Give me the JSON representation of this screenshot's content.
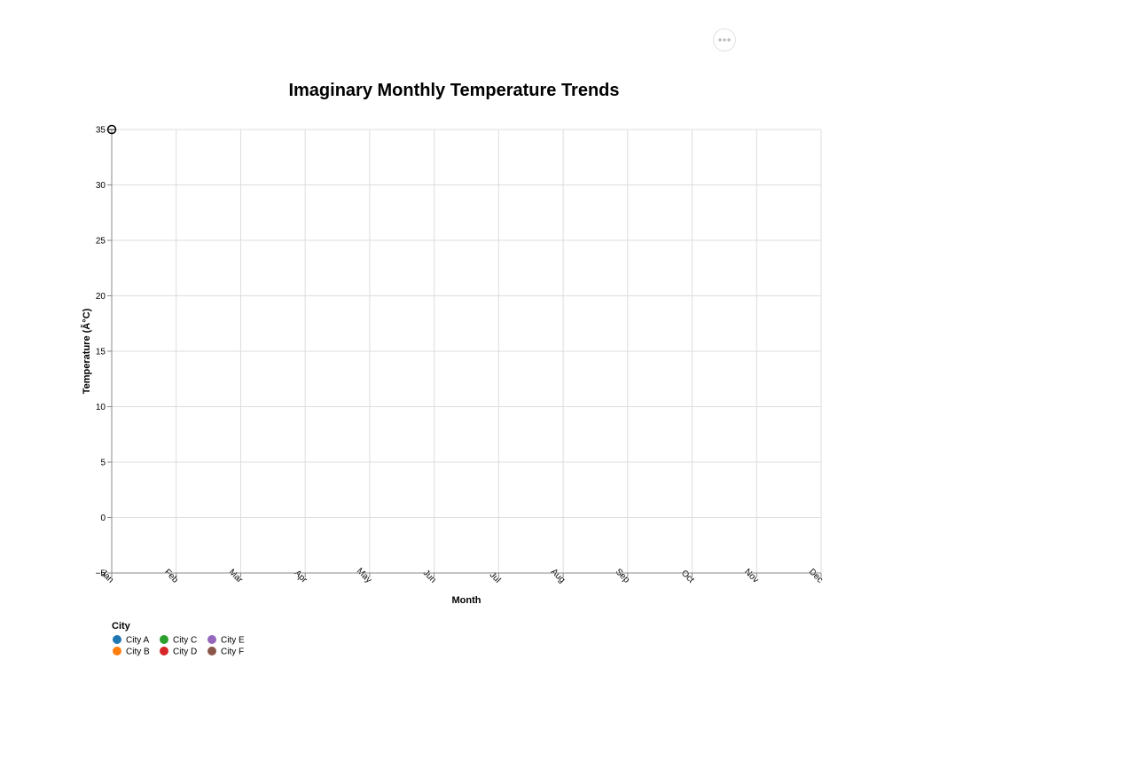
{
  "toolbar": {
    "menu_icon": "ellipsis-icon"
  },
  "chart_data": {
    "type": "line",
    "title": "Imaginary Monthly Temperature Trends",
    "xlabel": "Month",
    "ylabel": "Temperature (Â°C)",
    "categories": [
      "Jan",
      "Feb",
      "Mar",
      "Apr",
      "May",
      "Jun",
      "Jul",
      "Aug",
      "Sep",
      "Oct",
      "Nov",
      "Dec"
    ],
    "ylim": [
      -5,
      35
    ],
    "yticks": [
      -5,
      0,
      5,
      10,
      15,
      20,
      25,
      30,
      35
    ],
    "grid": true,
    "legend": {
      "title": "City",
      "placement": "bottom-left",
      "entries": [
        {
          "name": "City A",
          "color": "#1f77b4"
        },
        {
          "name": "City B",
          "color": "#ff7f0e"
        },
        {
          "name": "City C",
          "color": "#2ca02c"
        },
        {
          "name": "City D",
          "color": "#d62728"
        },
        {
          "name": "City E",
          "color": "#9467bd"
        },
        {
          "name": "City F",
          "color": "#8c564b"
        }
      ]
    },
    "series": [],
    "hover_point": {
      "x": "Jan",
      "y": 35
    }
  }
}
